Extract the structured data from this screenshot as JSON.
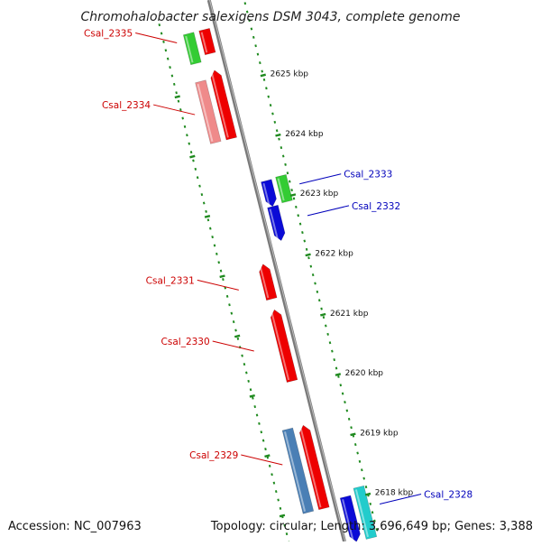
{
  "map": {
    "title": "Chromohalobacter salexigens DSM 3043, complete genome",
    "accession": "Accession: NC_007963",
    "summary": "Topology: circular; Length: 3,696,649 bp; Genes: 3,388"
  },
  "colors": {
    "backbone": "#7a7a7a",
    "tick": "#1f8a1f",
    "forward_label": "#cc0000",
    "reverse_label": "#0000bb"
  },
  "ruler": {
    "ticks": [
      {
        "kbp": 2625,
        "label": "2625 kbp"
      },
      {
        "kbp": 2624,
        "label": "2624 kbp"
      },
      {
        "kbp": 2623,
        "label": "2623 kbp"
      },
      {
        "kbp": 2622,
        "label": "2622 kbp"
      },
      {
        "kbp": 2621,
        "label": "2621 kbp"
      },
      {
        "kbp": 2620,
        "label": "2620 kbp"
      },
      {
        "kbp": 2619,
        "label": "2619 kbp"
      },
      {
        "kbp": 2618,
        "label": "2618 kbp"
      }
    ]
  },
  "features": [
    {
      "id": "f-2335a",
      "lane": -2,
      "from": 2625.95,
      "to": 2625.45,
      "color": "#33cc33",
      "arrow": "none"
    },
    {
      "id": "f-2335b",
      "lane": -1,
      "from": 2625.95,
      "to": 2625.55,
      "color": "#ee0000",
      "arrow": "none"
    },
    {
      "id": "f-2334a",
      "lane": -2,
      "from": 2625.15,
      "to": 2624.13,
      "color": "#ef8a8a",
      "arrow": "none"
    },
    {
      "id": "f-2334b",
      "lane": -1,
      "from": 2624.13,
      "to": 2625.27,
      "color": "#ee0000",
      "arrow": "up"
    },
    {
      "id": "f-2333a",
      "lane": 1,
      "from": 2623.33,
      "to": 2622.9,
      "color": "#0b0bd6",
      "arrow": "down"
    },
    {
      "id": "f-2333b",
      "lane": 2,
      "from": 2623.35,
      "to": 2622.92,
      "color": "#33cc33",
      "arrow": "none"
    },
    {
      "id": "f-2332",
      "lane": 1,
      "from": 2622.9,
      "to": 2622.33,
      "color": "#0b0bd6",
      "arrow": "down"
    },
    {
      "id": "f-2331",
      "lane": -1,
      "from": 2621.45,
      "to": 2622.03,
      "color": "#ee0000",
      "arrow": "up"
    },
    {
      "id": "f-2330",
      "lane": -1,
      "from": 2620.08,
      "to": 2621.27,
      "color": "#ee0000",
      "arrow": "up"
    },
    {
      "id": "f-2329a",
      "lane": -2,
      "from": 2619.34,
      "to": 2617.95,
      "color": "#4a7fb5",
      "arrow": "none"
    },
    {
      "id": "f-2329b",
      "lane": -1,
      "from": 2617.95,
      "to": 2619.34,
      "color": "#ee0000",
      "arrow": "up"
    },
    {
      "id": "f-2328a",
      "lane": 1,
      "from": 2618.05,
      "to": 2617.3,
      "color": "#0b0bd6",
      "arrow": "down"
    },
    {
      "id": "f-2328b",
      "lane": 2,
      "from": 2618.15,
      "to": 2617.3,
      "color": "#22cccc",
      "arrow": "none"
    }
  ],
  "labels": [
    {
      "name": "Csal_2335",
      "strand": "forward",
      "at": 2625.85
    },
    {
      "name": "Csal_2334",
      "strand": "forward",
      "at": 2624.65
    },
    {
      "name": "Csal_2333",
      "strand": "reverse",
      "at": 2623.15
    },
    {
      "name": "Csal_2332",
      "strand": "reverse",
      "at": 2622.62
    },
    {
      "name": "Csal_2331",
      "strand": "forward",
      "at": 2621.72
    },
    {
      "name": "Csal_2330",
      "strand": "forward",
      "at": 2620.7
    },
    {
      "name": "Csal_2329",
      "strand": "forward",
      "at": 2618.8
    },
    {
      "name": "Csal_2328",
      "strand": "reverse",
      "at": 2617.8
    }
  ]
}
